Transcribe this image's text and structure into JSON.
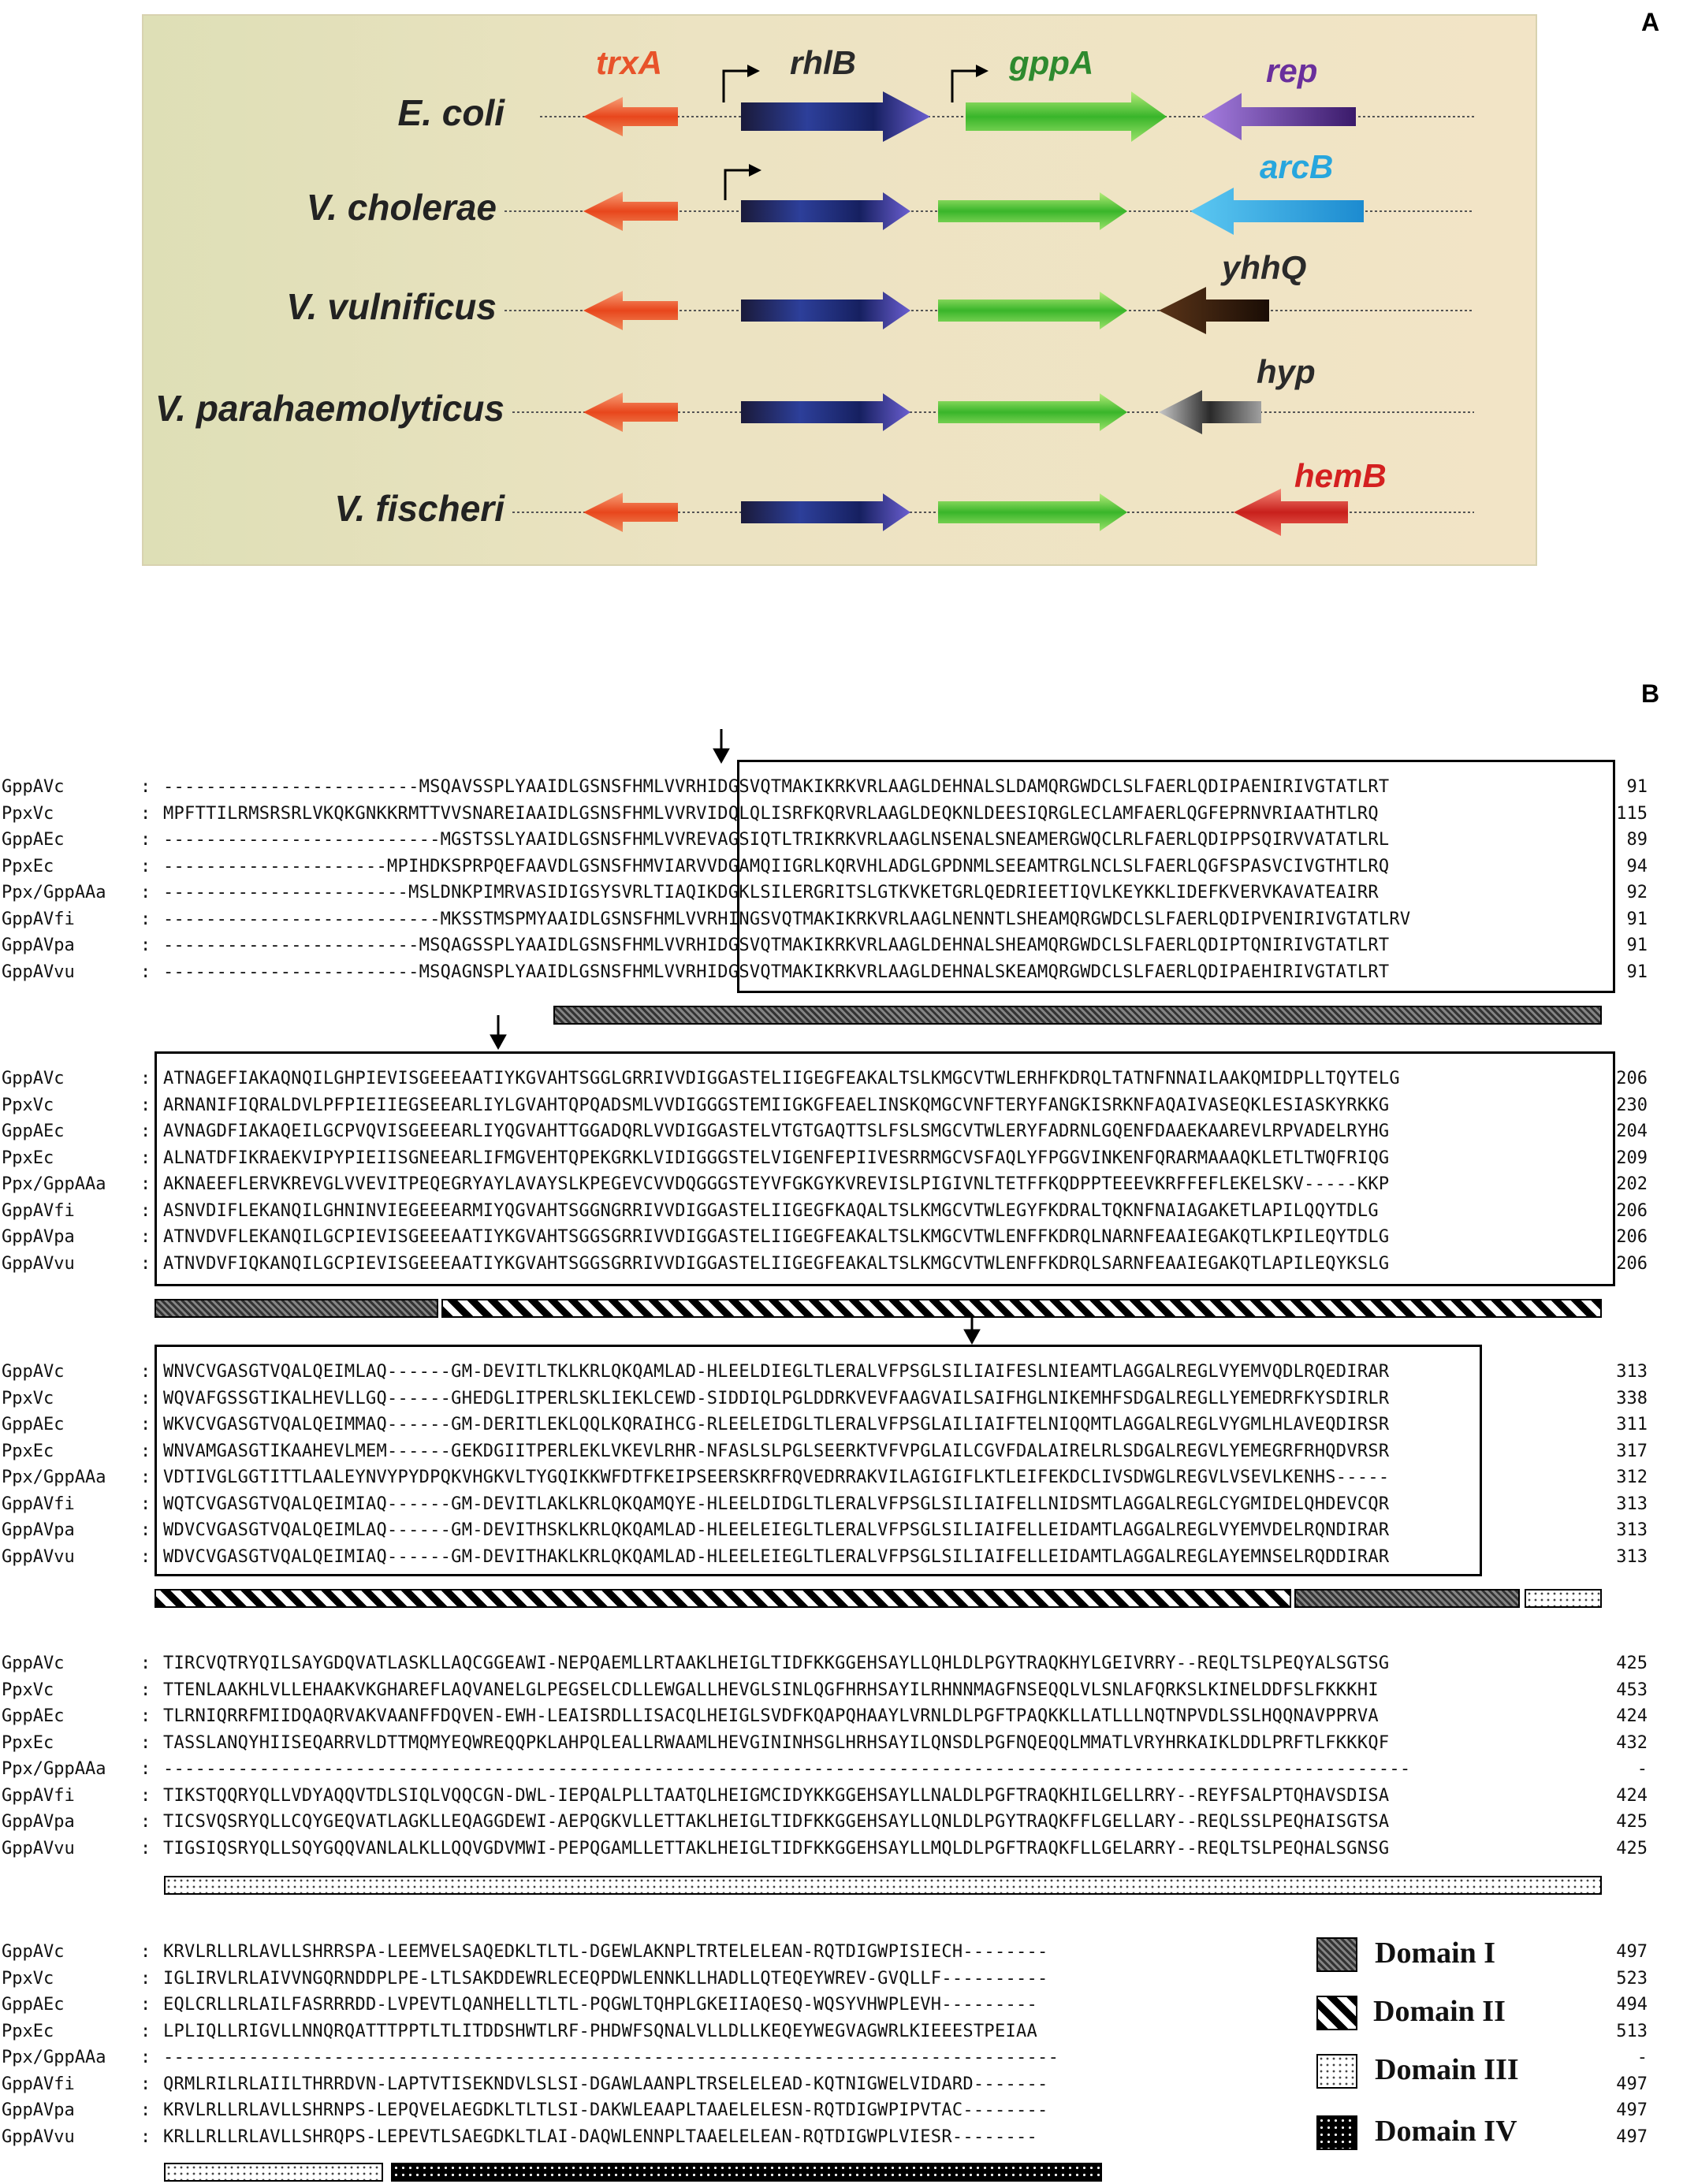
{
  "panel_a": {
    "label": "A",
    "species": [
      "E. coli",
      "V. cholerae",
      "V. vulnificus",
      "V. parahaemolyticus",
      "V. fischeri"
    ],
    "genes": {
      "trxA": {
        "text": "trxA",
        "color": "#e8532a"
      },
      "rhlB": {
        "text": "rhlB",
        "color": "#2a2a2a"
      },
      "gppA": {
        "text": "gppA",
        "color": "#2e8a2e"
      },
      "rep": {
        "text": "rep",
        "color": "#6a2f9c"
      },
      "arcB": {
        "text": "arcB",
        "color": "#27a6de"
      },
      "yhhQ": {
        "text": "yhhQ",
        "color": "#2a2a2a"
      },
      "hyp": {
        "text": "hyp",
        "color": "#2a2a2a"
      },
      "hemB": {
        "text": "hemB",
        "color": "#d42020"
      }
    }
  },
  "panel_b": {
    "label": "B",
    "sequence_names": [
      "GppAVc",
      "PpxVc",
      "GppAEc",
      "PpxEc",
      "Ppx/GppAAa",
      "GppAVfi",
      "GppAVpa",
      "GppAVvu"
    ],
    "blocks": [
      {
        "rows": [
          {
            "seq": "------------------------MSQAVSSPLYAAIDLGSNSFHMLVVRHIDGSVQTMAKIKRKVRLAAGLDEHNALSLDAMQRGWDCLSLFAERLQDIPAENIRIVGTATLRT",
            "end": "91"
          },
          {
            "seq": "MPFTTILRMSRSRLVKQKGNKKRMTTVVSNAREIAAIDLGSNSFHMLVVRVIDQLQLISRFKQRVRLAAGLDEQKNLDEESIQRGLECLAMFAERLQGFEPRNVRIAATHTLRQ",
            "end": "115"
          },
          {
            "seq": "--------------------------MGSTSSLYAAIDLGSNSFHMLVVREVAGSIQTLTRIKRKVRLAAGLNSENALSNEAMERGWQCLRLFAERLQDIPPSQIRVVATATLRL",
            "end": "89"
          },
          {
            "seq": "---------------------MPIHDKSPRPQEFAAVDLGSNSFHMVIARVVDGAMQIIGRLKQRVHLADGLGPDNMLSEEAMTRGLNCLSLFAERLQGFSPASVCIVGTHTLRQ",
            "end": "94"
          },
          {
            "seq": "-----------------------MSLDNKPIMRVASIDIGSYSVRLTIAQIKDGKLSILERGRITSLGTKVKETGRLQEDRIEETIQVLKEYKKLIDEFKVERVKAVATEAIRR",
            "end": "92"
          },
          {
            "seq": "--------------------------MKSSTMSPMYAAIDLGSNSFHMLVVRHINGSVQTMAKIKRKVRLAAGLNENNTLSHEAMQRGWDCLSLFAERLQDIPVENIRIVGTATLRV",
            "end": "91"
          },
          {
            "seq": "------------------------MSQAGSSPLYAAIDLGSNSFHMLVVRHIDGSVQTMAKIKRKVRLAAGLDEHNALSHEAMQRGWDCLSLFAERLQDIPTQNIRIVGTATLRT",
            "end": "91"
          },
          {
            "seq": "------------------------MSQAGNSPLYAAIDLGSNSFHMLVVRHIDGSVQTMAKIKRKVRLAAGLDEHNALSKEAMQRGWDCLSLFAERLQDIPAEHIRIVGTATLRT",
            "end": "91"
          }
        ]
      },
      {
        "rows": [
          {
            "seq": "ATNAGEFIAKAQNQILGHPIEVISGEEEAATIYKGVAHTSGGLGRRIVVDIGGASTELIIGEGFEAKALTSLKMGCVTWLERHFKDRQLTATNFNNAILAAKQMIDPLLTQYTELG",
            "end": "206"
          },
          {
            "seq": "ARNANIFIQRALDVLPFPIEIIEGSEEARLIYLGVAHTQPQADSMLVVDIGGGSTEMIIGKGFEAELINSKQMGCVNFTERYFANGKISRKNFAQAIVASEQKLESIASKYRKKG",
            "end": "230"
          },
          {
            "seq": "AVNAGDFIAKAQEILGCPVQVISGEEEARLIYQGVAHTTGGADQRLVVDIGGASTELVTGTGAQTTSLFSLSMGCVTWLERYFADRNLGQENFDAAEKAAREVLRPVADELRYHG",
            "end": "204"
          },
          {
            "seq": "ALNATDFIKRAEKVIPYPIEIISGNEEARLIFMGVEHTQPEKGRKLVIDIGGGSTELVIGENFEPIIVESRRMGCVSFAQLYFPGGVINKENFQRARMAAAQKLETLTWQFRIQG",
            "end": "209"
          },
          {
            "seq": "AKNAEEFLERVKREVGLVVEVITPEQEGRYAYLAVAYSLKPEGEVCVVDQGGGSTEYVFGKGYKVREVISLPIGIVNLTETFFKQDPPTEEEVKRFFEFLEKELSKV-----KKP",
            "end": "202"
          },
          {
            "seq": "ASNVDIFLEKANQILGHNINVIEGEEEARMIYQGVAHTSGGNGRRIVVDIGGASTELIIGEGFKAQALTSLKMGCVTWLEGYFKDRALTQKNFNAIAGAKETLAPILQQYTDLG",
            "end": "206"
          },
          {
            "seq": "ATNVDVFLEKANQILGCPIEVISGEEEAATIYKGVAHTSGGSGRRIVVDIGGASTELIIGEGFEAKALTSLKMGCVTWLENFFKDRQLNARNFEAAIEGAKQTLKPILEQYTDLG",
            "end": "206"
          },
          {
            "seq": "ATNVDVFIQKANQILGCPIEVISGEEEAATIYKGVAHTSGGSGRRIVVDIGGASTELIIGEGFEAKALTSLKMGCVTWLENFFKDRQLSARNFEAAIEGAKQTLAPILEQYKSLG",
            "end": "206"
          }
        ]
      },
      {
        "rows": [
          {
            "seq": "WNVCVGASGTVQALQEIMLAQ------GM-DEVITLTKLKRLQKQAMLAD-HLEELDIEGLTLERALVFPSGLSILIAIFESLNIEAMTLAGGALREGLVYEMVQDLRQEDIRAR",
            "end": "313"
          },
          {
            "seq": "WQVAFGSSGTIKALHEVLLGQ------GHEDGLITPERLSKLIEKLCEWD-SIDDIQLPGLDDRKVEVFAAGVAILSAIFHGLNIKEMHFSDGALREGLLYEMEDRFKYSDIRLR",
            "end": "338"
          },
          {
            "seq": "WKVCVGASGTVQALQEIMMAQ------GM-DERITLEKLQQLKQRAIHCG-RLEELEIDGLTLERALVFPSGLAILIAIFTELNIQQMTLAGGALREGLVYGMLHLAVEQDIRSR",
            "end": "311"
          },
          {
            "seq": "WNVAMGASGTIKAAHEVLMEM------GEKDGIITPERLEKLVKEVLRHR-NFASLSLPGLSEERKTVFVPGLAILCGVFDALAIRELRLSDGALREGVLYEMEGRFRHQDVRSR",
            "end": "317"
          },
          {
            "seq": "VDTIVGLGGTITTLAALEYNVYPYDPQKVHGKVLTYGQIKKWFDTFKEIPSEERSKRFRQVEDRRAKVILAGIGIFLKTLEIFEKDCLIVSDWGLREGVLVSEVLKENHS-----",
            "end": "312"
          },
          {
            "seq": "WQTCVGASGTVQALQEIMIAQ------GM-DEVITLAKLKRLQKQAMQYE-HLEELDIDGLTLERALVFPSGLSILIAIFELLNIDSMTLAGGALREGLCYGMIDELQHDEVCQR",
            "end": "313"
          },
          {
            "seq": "WDVCVGASGTVQALQEIMLAQ------GM-DEVITHSKLKRLQKQAMLAD-HLEELEIEGLTLERALVFPSGLSILIAIFELLEIDAMTLAGGALREGLVYEMVDELRQNDIRAR",
            "end": "313"
          },
          {
            "seq": "WDVCVGASGTVQALQEIMIAQ------GM-DEVITHAKLKRLQKQAMLAD-HLEELEIEGLTLERALVFPSGLSILIAIFELLEIDAMTLAGGALREGLAYEMNSELRQDDIRAR",
            "end": "313"
          }
        ]
      },
      {
        "rows": [
          {
            "seq": "TIRCVQTRYQILSAYGDQVATLASKLLAQCGGEAWI-NEPQAEMLLRTAAKLHEIGLTIDFKKGGEHSAYLLQHLDLPGYTRAQKHYLGEIVRRY--REQLTSLPEQYALSGTSG",
            "end": "425"
          },
          {
            "seq": "TTENLAAKHLVLLEHAAKVKGHAREFLAQVANELGLPEGSELCDLLEWGALLHEVGLSINLQGFHRHSAYILRHNNMAGFNSEQQLVLSNLAFQRKSLKINELDDFSLFKKKHI",
            "end": "453"
          },
          {
            "seq": "TLRNIQRRFMIIDQAQRVAKVAANFFDQVEN-EWH-LEAISRDLLISACQLHEIGLSVDFKQAPQHAAYLVRNLDLPGFTPAQKKLLATLLLNQTNPVDLSSLHQQNAVPPRVA",
            "end": "424"
          },
          {
            "seq": "TASSLANQYHIISEQARRVLDTTMQMYEQWREQQPKLAHPQLEALLRWAAMLHEVGININHSGLHRHSAYILQNSDLPGFNQEQQLMMATLVRYHRKAIKLDDLPRFTLFKKKQF",
            "end": "432"
          },
          {
            "seq": "---------------------------------------------------------------------------------------------------------------------",
            "end": "-"
          },
          {
            "seq": "TIKSTQQRYQLLVDYAQQVTDLSIQLVQQCGN-DWL-IEPQALPLLTAATQLHEIGMCIDYKKGGEHSAYLLNALDLPGFTRAQKHILGELLRRY--REYFSALPTQHAVSDISA",
            "end": "424"
          },
          {
            "seq": "TICSVQSRYQLLCQYGEQVATLAGKLLEQAGGDEWI-AEPQGKVLLETTAKLHEIGLTIDFKKGGEHSAYLLQNLDLPGYTRAQKFFLGELLARY--REQLSSLPEQHAISGTSA",
            "end": "425"
          },
          {
            "seq": "TIGSIQSRYQLLSQYGQQVANLALKLLQQVGDVMWI-PEPQGAMLLETTAKLHEIGLTIDFKKGGEHSAYLLMQLDLPGFTRAQKFLLGELARRY--REQLTSLPEQHALSGNSG",
            "end": "425"
          }
        ]
      },
      {
        "rows": [
          {
            "seq": "KRVLRLLRLAVLLSHRRSPA-LEEMVELSAQEDKLTLTL-DGEWLAKNPLTRTELELEAN-RQTDIGWPISIECH--------",
            "end": "497"
          },
          {
            "seq": "IGLIRVLRLAIVVNGQRNDDPLPE-LTLSAKDDEWRLECEQPDWLENNKLLHADLLQTEQEYWREV-GVQLLF----------",
            "end": "523"
          },
          {
            "seq": "EQLCRLLRLAILFASRRRDD-LVPEVTLQANHELLTLTL-PQGWLTQHPLGKEIIAQESQ-WQSYVHWPLEVH---------",
            "end": "494"
          },
          {
            "seq": "LPLIQLLRIGVLLNNQRQATTTPPTLTLITDDSHWTLRF-PHDWFSQNALVLLDLLKEQEYWEGVAGWRLKIEEESTPEIAA",
            "end": "513"
          },
          {
            "seq": "------------------------------------------------------------------------------------",
            "end": "-"
          },
          {
            "seq": "QRMLRILRLAIILTHRRDVN-LAPTVTISEKNDVLSLSI-DGAWLAANPLTRSELELEAD-KQTNIGWELVIDARD-------",
            "end": "497"
          },
          {
            "seq": "KRVLRLLRLAVLLSHRNPS-LEPQVELAEGDKLTLTLSI-DAKWLEAAPLTAAELELESN-RQTDIGWPIPVTAC--------",
            "end": "497"
          },
          {
            "seq": "KRLLRLLRLAVLLSHRQPS-LEPEVTLSAEGDKLTLAI-DAQWLENNPLTAAELELEAN-RQTDIGWPLVIESR--------",
            "end": "497"
          }
        ]
      }
    ],
    "legend": [
      "Domain I",
      "Domain II",
      "Domain III",
      "Domain IV"
    ]
  }
}
